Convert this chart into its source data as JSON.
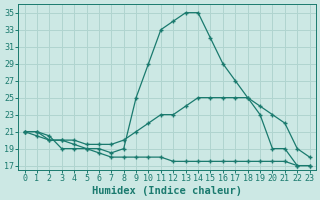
{
  "x": [
    0,
    1,
    2,
    3,
    4,
    5,
    6,
    7,
    8,
    9,
    10,
    11,
    12,
    13,
    14,
    15,
    16,
    17,
    18,
    19,
    20,
    21,
    22,
    23
  ],
  "line1": [
    21,
    21,
    20.5,
    19,
    19,
    19,
    19,
    18.5,
    19,
    25,
    29,
    33,
    34,
    35,
    35,
    32,
    29,
    27,
    25,
    23,
    19,
    19,
    17,
    17
  ],
  "line2": [
    21,
    21,
    20,
    20,
    20,
    19.5,
    19.5,
    19.5,
    20,
    21,
    22,
    23,
    23,
    24,
    25,
    25,
    25,
    25,
    25,
    24,
    23,
    22,
    19,
    18
  ],
  "line3": [
    21,
    20.5,
    20,
    20,
    19.5,
    19,
    18.5,
    18,
    18,
    18,
    18,
    18,
    17.5,
    17.5,
    17.5,
    17.5,
    17.5,
    17.5,
    17.5,
    17.5,
    17.5,
    17.5,
    17,
    17
  ],
  "color": "#1a7a6e",
  "bg_color": "#cce8e4",
  "grid_color": "#b0d4cf",
  "xlabel": "Humidex (Indice chaleur)",
  "xlim": [
    -0.5,
    23.5
  ],
  "ylim": [
    16.5,
    36
  ],
  "yticks": [
    17,
    19,
    21,
    23,
    25,
    27,
    29,
    31,
    33,
    35
  ],
  "xticks": [
    0,
    1,
    2,
    3,
    4,
    5,
    6,
    7,
    8,
    9,
    10,
    11,
    12,
    13,
    14,
    15,
    16,
    17,
    18,
    19,
    20,
    21,
    22,
    23
  ],
  "tick_fontsize": 6.0,
  "xlabel_fontsize": 7.5
}
